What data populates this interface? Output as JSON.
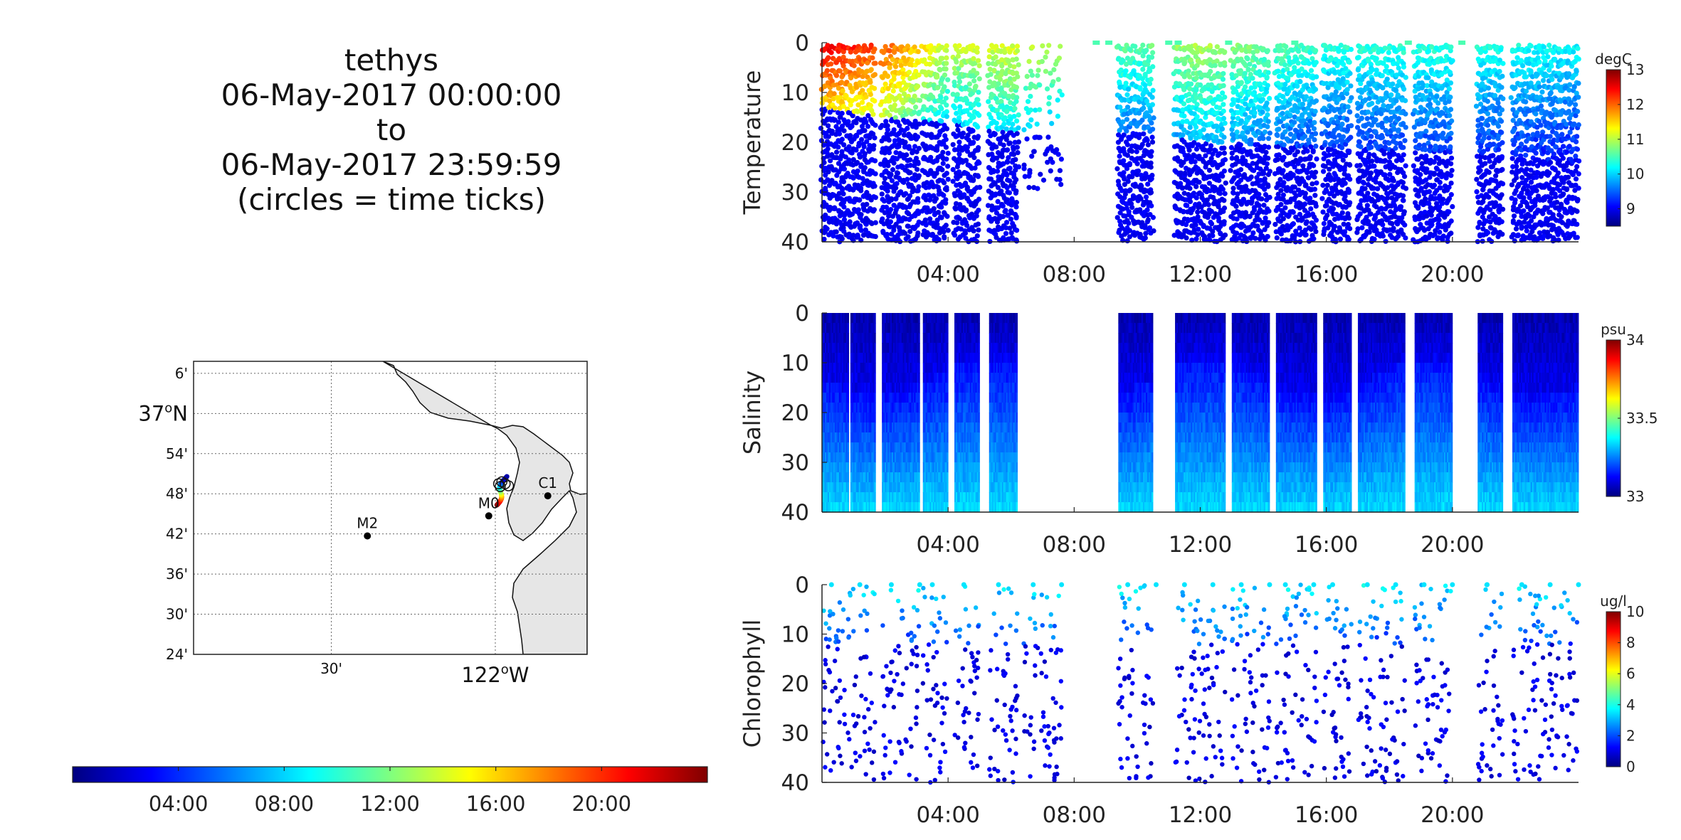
{
  "title": {
    "line1": "tethys",
    "line2": "06-May-2017 00:00:00",
    "line3": "to",
    "line4": "06-May-2017 23:59:59",
    "line5": "(circles = time ticks)"
  },
  "colors": {
    "jet": [
      "#00007f",
      "#0000ff",
      "#007fff",
      "#00ffff",
      "#7fff7f",
      "#ffff00",
      "#ff7f00",
      "#ff0000",
      "#7f0000"
    ],
    "land": "#e6e6e6",
    "frame": "#222222"
  },
  "map": {
    "lat_ticks": [
      "6'",
      "37°N",
      "54'",
      "48'",
      "42'",
      "36'",
      "30'",
      "24'"
    ],
    "lat_values": [
      37.1,
      37.0,
      36.9,
      36.8,
      36.7,
      36.6,
      36.5,
      36.4
    ],
    "lon_ticks": [
      "30'",
      "122°W"
    ],
    "lon_values": [
      -122.5,
      -122.0
    ],
    "lat_range": [
      36.4,
      37.13
    ],
    "lon_range": [
      -122.92,
      -121.72
    ],
    "stations": [
      {
        "name": "M2",
        "lon": -122.39,
        "lat": 36.695
      },
      {
        "name": "M0",
        "lon": -122.02,
        "lat": 36.745
      },
      {
        "name": "C1",
        "lon": -121.84,
        "lat": 36.795
      }
    ]
  },
  "time_colorbar": {
    "ticks": [
      "04:00",
      "08:00",
      "12:00",
      "16:00",
      "20:00"
    ],
    "tick_hours": [
      4,
      8,
      12,
      16,
      20
    ],
    "range_hours": [
      0,
      24
    ]
  },
  "chart_data": [
    {
      "type": "scatter",
      "title": "",
      "xlabel": "",
      "ylabel": "Temperature",
      "units": "degC",
      "x_ticks": [
        "04:00",
        "08:00",
        "12:00",
        "16:00",
        "20:00"
      ],
      "x_tick_hours": [
        4,
        8,
        12,
        16,
        20
      ],
      "xlim_hours": [
        0,
        24
      ],
      "ylim": [
        0,
        40
      ],
      "y_reversed": true,
      "y_ticks": [
        0,
        10,
        20,
        30,
        40
      ],
      "cbar_range": [
        8.5,
        13
      ],
      "cbar_ticks": [
        9,
        10,
        11,
        12,
        13
      ],
      "profile_bands_hours": [
        [
          0,
          1.7
        ],
        [
          1.9,
          3.1
        ],
        [
          3.2,
          4.0
        ],
        [
          4.2,
          5.0
        ],
        [
          5.3,
          6.2
        ],
        [
          6.4,
          7.6
        ],
        [
          9.4,
          10.5
        ],
        [
          11.2,
          12.8
        ],
        [
          13.0,
          14.2
        ],
        [
          14.4,
          15.7
        ],
        [
          15.9,
          16.8
        ],
        [
          17.0,
          18.5
        ],
        [
          18.8,
          20.0
        ],
        [
          20.8,
          21.6
        ],
        [
          21.9,
          24.0
        ]
      ],
      "gaps_hours": [
        [
          7.6,
          9.4
        ]
      ],
      "surface_temp_hours": [
        0,
        2,
        4,
        6,
        10,
        12,
        16,
        20,
        24
      ],
      "surface_temp_values": [
        12.6,
        12.1,
        11.1,
        11.2,
        10.6,
        11.0,
        10.4,
        10.4,
        10.2
      ],
      "thermocline_depth_m": [
        13,
        15,
        16,
        18,
        18,
        20,
        21,
        22,
        24
      ],
      "deep_temp": 9.0
    },
    {
      "type": "scatter",
      "title": "",
      "xlabel": "",
      "ylabel": "Salinity",
      "units": "psu",
      "x_ticks": [
        "04:00",
        "08:00",
        "12:00",
        "16:00",
        "20:00"
      ],
      "x_tick_hours": [
        4,
        8,
        12,
        16,
        20
      ],
      "xlim_hours": [
        0,
        24
      ],
      "ylim": [
        0,
        40
      ],
      "y_reversed": true,
      "y_ticks": [
        0,
        10,
        20,
        30,
        40
      ],
      "cbar_range": [
        33,
        34
      ],
      "cbar_ticks": [
        "34",
        "33.5",
        "33"
      ],
      "cbar_tick_values": [
        34,
        33.5,
        33
      ],
      "surface_salinity": 33.05,
      "deep_salinity": 33.3,
      "halocline_depth_m": 12
    },
    {
      "type": "scatter",
      "title": "",
      "xlabel": "",
      "ylabel": "Chlorophyll",
      "units": "ug/l",
      "x_ticks": [
        "04:00",
        "08:00",
        "12:00",
        "16:00",
        "20:00"
      ],
      "x_tick_hours": [
        4,
        8,
        12,
        16,
        20
      ],
      "xlim_hours": [
        0,
        24
      ],
      "ylim": [
        0,
        40
      ],
      "y_reversed": true,
      "y_ticks": [
        0,
        10,
        20,
        30,
        40
      ],
      "cbar_range": [
        0,
        10
      ],
      "cbar_ticks": [
        0,
        2,
        4,
        6,
        8,
        10
      ],
      "surface_chl": 3.5,
      "deep_chl": 0.6
    }
  ]
}
